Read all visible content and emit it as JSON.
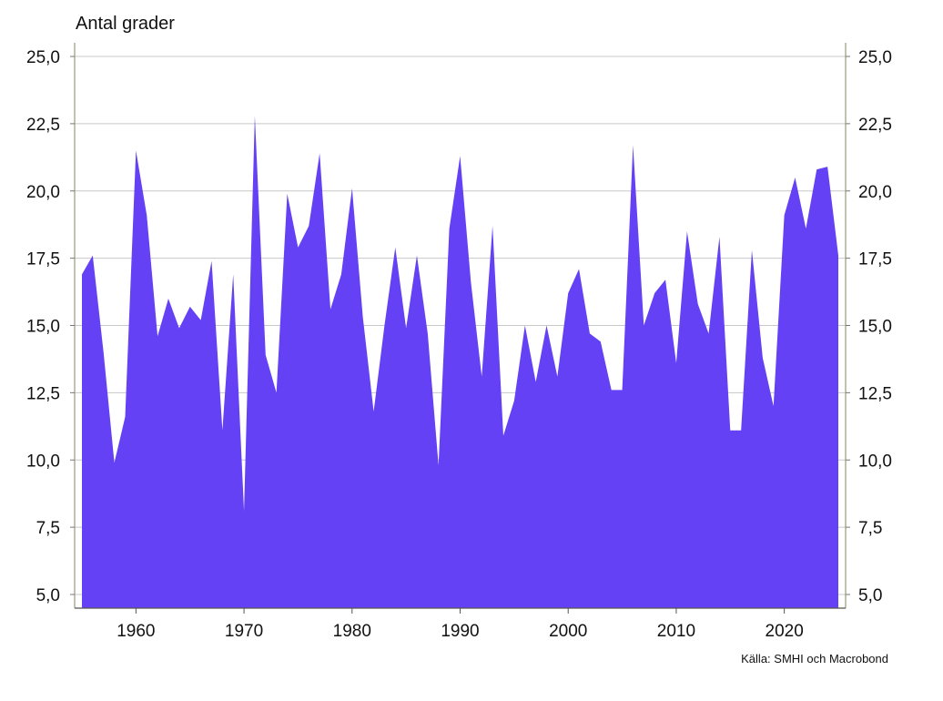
{
  "chart_data": {
    "type": "area",
    "title": "",
    "ylabel": "Antal grader",
    "xlabel": "",
    "source": "Källa: SMHI och Macrobond",
    "ylim": [
      4.5,
      25.5
    ],
    "xlim": [
      1954.5,
      2025
    ],
    "yticks": [
      "5,0",
      "7,5",
      "10,0",
      "12,5",
      "15,0",
      "17,5",
      "20,0",
      "22,5",
      "25,0"
    ],
    "xticks": [
      "1960",
      "1970",
      "1980",
      "1990",
      "2000",
      "2010",
      "2020"
    ],
    "grid": true,
    "color": "#6441f5",
    "x": [
      1955,
      1956,
      1957,
      1958,
      1959,
      1960,
      1961,
      1962,
      1963,
      1964,
      1965,
      1966,
      1967,
      1968,
      1969,
      1970,
      1971,
      1972,
      1973,
      1974,
      1975,
      1976,
      1977,
      1978,
      1979,
      1980,
      1981,
      1982,
      1983,
      1984,
      1985,
      1986,
      1987,
      1988,
      1989,
      1990,
      1991,
      1992,
      1993,
      1994,
      1995,
      1996,
      1997,
      1998,
      1999,
      2000,
      2001,
      2002,
      2003,
      2004,
      2005,
      2006,
      2007,
      2008,
      2009,
      2010,
      2011,
      2012,
      2013,
      2014,
      2015,
      2016,
      2017,
      2018,
      2019,
      2020,
      2021,
      2022,
      2023,
      2024,
      2025
    ],
    "values": [
      16.9,
      17.6,
      14.0,
      9.9,
      11.6,
      21.5,
      19.1,
      14.6,
      16.0,
      14.9,
      15.7,
      15.2,
      17.4,
      11.1,
      16.9,
      8.1,
      22.8,
      13.9,
      12.5,
      19.9,
      17.9,
      18.7,
      21.4,
      15.6,
      16.9,
      20.1,
      15.3,
      11.8,
      15.0,
      17.9,
      14.9,
      17.6,
      14.7,
      9.8,
      18.6,
      21.3,
      16.6,
      13.1,
      18.7,
      10.9,
      12.2,
      15.0,
      12.9,
      15.0,
      13.1,
      16.2,
      17.1,
      14.7,
      14.4,
      12.6,
      12.6,
      21.7,
      15.0,
      16.2,
      16.7,
      13.6,
      18.5,
      15.8,
      14.7,
      18.3,
      11.1,
      11.1,
      17.8,
      13.8,
      12.0,
      19.1,
      20.5,
      18.6,
      20.8,
      20.9,
      17.6
    ]
  }
}
